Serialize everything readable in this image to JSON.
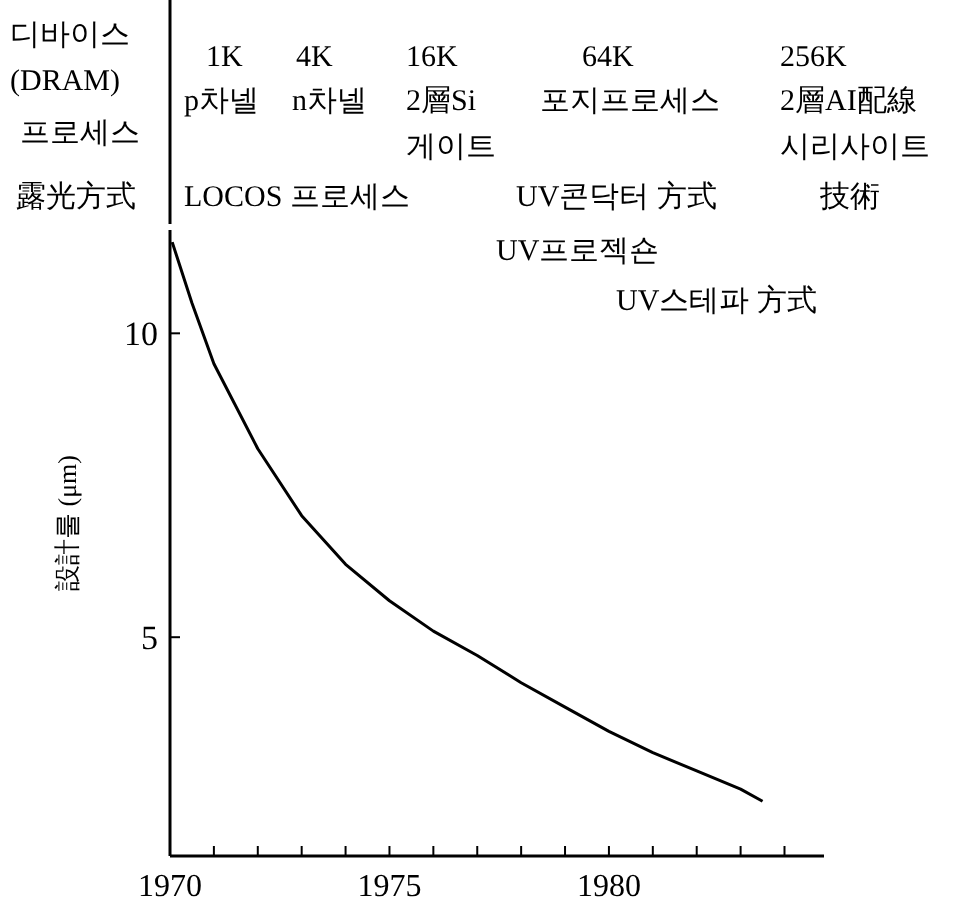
{
  "chart_data": {
    "type": "line",
    "ylabel": "設計룰 (μm)",
    "x": [
      1970.05,
      1970.5,
      1971,
      1972,
      1973,
      1974,
      1975,
      1976,
      1977,
      1978,
      1979,
      1980,
      1981,
      1982,
      1983,
      1983.5
    ],
    "series": [
      {
        "color": "#000000",
        "values": [
          11.5,
          10.5,
          9.5,
          8.1,
          7.0,
          6.2,
          5.6,
          5.1,
          4.7,
          4.25,
          3.85,
          3.45,
          3.1,
          2.8,
          2.5,
          2.3
        ]
      }
    ],
    "xlim": [
      1970,
      1984.9
    ],
    "ylim": [
      1.4,
      11.7
    ],
    "xticks": [
      1970,
      {
        "value": 1971,
        "label": null
      },
      {
        "value": 1972,
        "label": null
      },
      {
        "value": 1973,
        "label": null
      },
      {
        "value": 1974,
        "label": null
      },
      1975,
      {
        "value": 1976,
        "label": null
      },
      {
        "value": 1977,
        "label": null
      },
      {
        "value": 1978,
        "label": null
      },
      {
        "value": 1979,
        "label": null
      },
      1980,
      {
        "value": 1981,
        "label": null
      },
      {
        "value": 1982,
        "label": null
      },
      {
        "value": 1983,
        "label": null
      },
      {
        "value": 1984,
        "label": null
      }
    ],
    "yticks": [
      5,
      10
    ],
    "grid": false,
    "marker": "none",
    "line_style": "solid",
    "annotations": [
      "디바이스\n(DRAM)",
      "프로세스",
      "露光方式",
      "1K",
      "4K",
      "16K",
      "64K",
      "256K",
      "p차넬",
      "n차넬",
      "2層Si\n게이트",
      "포지프로세스",
      "2層AI配線\n시리사이트",
      "LOCOS 프로세스",
      "UV콘닥터 方式",
      "技術",
      "UV프로젝숀",
      "UV스테파 方式"
    ]
  }
}
